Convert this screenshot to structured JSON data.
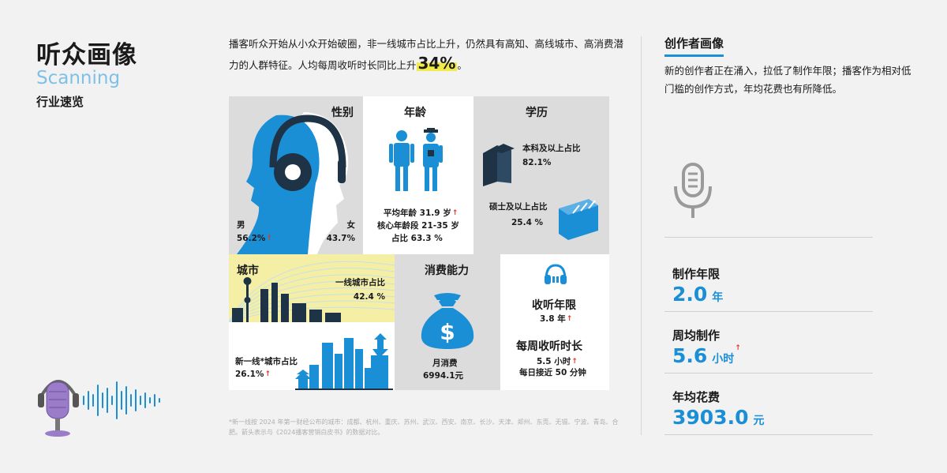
{
  "header": {
    "title": "听众画像",
    "subtitle_en": "Scanning",
    "subtitle_cn": "行业速览"
  },
  "intro": {
    "text_before": "播客听众开始从小众开始破圈，非一线城市占比上升，仍然具有高知、高线城市、高消费潜力的人群特征。人均每周收听时长同比上升",
    "highlight": "34%",
    "text_after": "。"
  },
  "gender": {
    "title": "性别",
    "male_label": "男",
    "male_value": "56.2%",
    "female_label": "女",
    "female_value": "43.7%"
  },
  "age": {
    "title": "年龄",
    "avg_label": "平均年龄 31.9 岁",
    "core_label": "核心年龄段 21-35 岁",
    "core_share": "占比 63.3 %"
  },
  "education": {
    "title": "学历",
    "bachelor_label": "本科及以上占比",
    "bachelor_value": "82.1%",
    "master_label": "硕士及以上占比",
    "master_value": "25.4 %"
  },
  "city": {
    "title": "城市",
    "tier1_label": "一线城市占比",
    "tier1_value": "42.4 %",
    "newtier1_label": "新一线*城市占比",
    "newtier1_value": "26.1%"
  },
  "consumption": {
    "title": "消费能力",
    "monthly_label": "月消费",
    "monthly_value": "6994.1元"
  },
  "listening": {
    "years_title": "收听年限",
    "years_value": "3.8 年",
    "weekly_title": "每周收听时长",
    "weekly_value": "5.5 小时",
    "daily_note": "每日接近 50 分钟"
  },
  "footnote": "*新一线按 2024 年第一财经公布的城市：成都、杭州、重庆、苏州、武汉、西安、南京、长沙、天津、郑州、东莞、无锡、宁波、青岛、合肥。箭头表示与《2024播客营销白皮书》的数据对比。",
  "creator": {
    "title": "创作者画像",
    "desc": "新的创作者正在涌入，拉低了制作年限；播客作为相对低门槛的创作方式，年均花费也有所降低。",
    "stats": [
      {
        "label": "制作年限",
        "value": "2.0",
        "unit": "年"
      },
      {
        "label": "周均制作",
        "value": "5.6",
        "unit": "小时"
      },
      {
        "label": "年均花费",
        "value": "3903.0",
        "unit": "元"
      }
    ]
  },
  "icons": {
    "microphone": "microphone-icon",
    "headphones": "headphones-icon",
    "money_bag": "money-bag-icon",
    "books": "books-icon",
    "people": "people-icon",
    "up_arrow": "up-arrow-icon"
  },
  "colors": {
    "accent_blue": "#1a8fd6",
    "highlight_yellow": "#f0ea4a",
    "up_arrow_red": "#d93a2b",
    "dark_navy": "#1f3346"
  }
}
